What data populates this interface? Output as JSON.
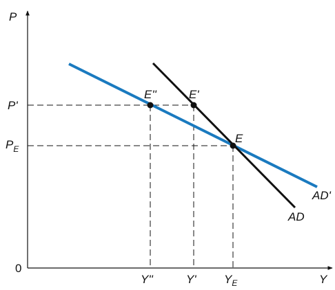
{
  "diagram": {
    "axes": {
      "y_label": "P",
      "x_label": "Y",
      "origin_label": "0"
    },
    "price_labels": {
      "p_prime": "P'",
      "p_e_main": "P",
      "p_e_sub": "E"
    },
    "output_labels": {
      "y_double_prime": "Y''",
      "y_prime": "Y'",
      "y_e_main": "Y",
      "y_e_sub": "E"
    },
    "curves": {
      "ad": {
        "label": "AD",
        "color": "#111111"
      },
      "ad_prime": {
        "label": "AD'",
        "color": "#1a7abf"
      }
    },
    "points": {
      "e": "E",
      "e_prime": "E'",
      "e_double_prime": "E''"
    },
    "colors": {
      "axis": "#111111",
      "guide": "#111111",
      "point": "#111111"
    }
  }
}
